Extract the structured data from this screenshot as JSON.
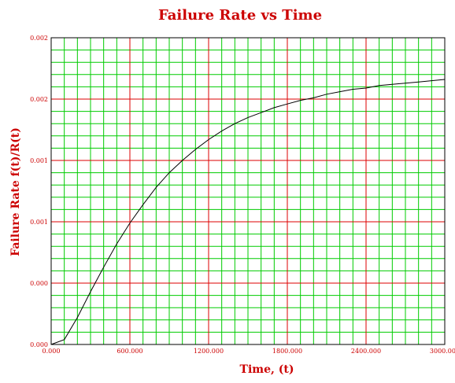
{
  "chart_data": {
    "type": "line",
    "title": "Failure Rate vs Time",
    "xlabel": "Time, (t)",
    "ylabel": "Failure Rate f(t)/R(t)",
    "xlim": [
      0,
      3000
    ],
    "ylim": [
      0,
      0.0025
    ],
    "x_ticks": [
      0,
      600,
      1200,
      1800,
      2400,
      3000
    ],
    "x_tick_labels": [
      "0.000",
      "600.000",
      "1200.000",
      "1800.000",
      "2400.000",
      "3000.000"
    ],
    "y_ticks": [
      0,
      0.0005,
      0.001,
      0.0015,
      0.002,
      0.0025
    ],
    "y_tick_labels": [
      "0.000",
      "0.000",
      "0.001",
      "0.001",
      "0.002",
      "0.002"
    ],
    "grid": true,
    "colors": {
      "line": "#000000",
      "major_grid": "#dd0000",
      "minor_grid": "#00cc00",
      "text": "#cc0000"
    },
    "series": [
      {
        "x": [
          0,
          100,
          200,
          300,
          400,
          500,
          600,
          700,
          800,
          900,
          1000,
          1100,
          1200,
          1300,
          1400,
          1500,
          1600,
          1700,
          1800,
          1900,
          2000,
          2100,
          2200,
          2300,
          2400,
          2500,
          2600,
          2700,
          2800,
          2900,
          3000
        ],
        "y": [
          0.0,
          4e-05,
          0.00022,
          0.00043,
          0.00063,
          0.00082,
          0.00099,
          0.00114,
          0.00128,
          0.0014,
          0.0015,
          0.00159,
          0.00167,
          0.00174,
          0.0018,
          0.00185,
          0.00189,
          0.00193,
          0.00196,
          0.00199,
          0.00201,
          0.00204,
          0.00206,
          0.00208,
          0.00209,
          0.00211,
          0.00212,
          0.00213,
          0.00214,
          0.00215,
          0.00216
        ]
      }
    ]
  }
}
